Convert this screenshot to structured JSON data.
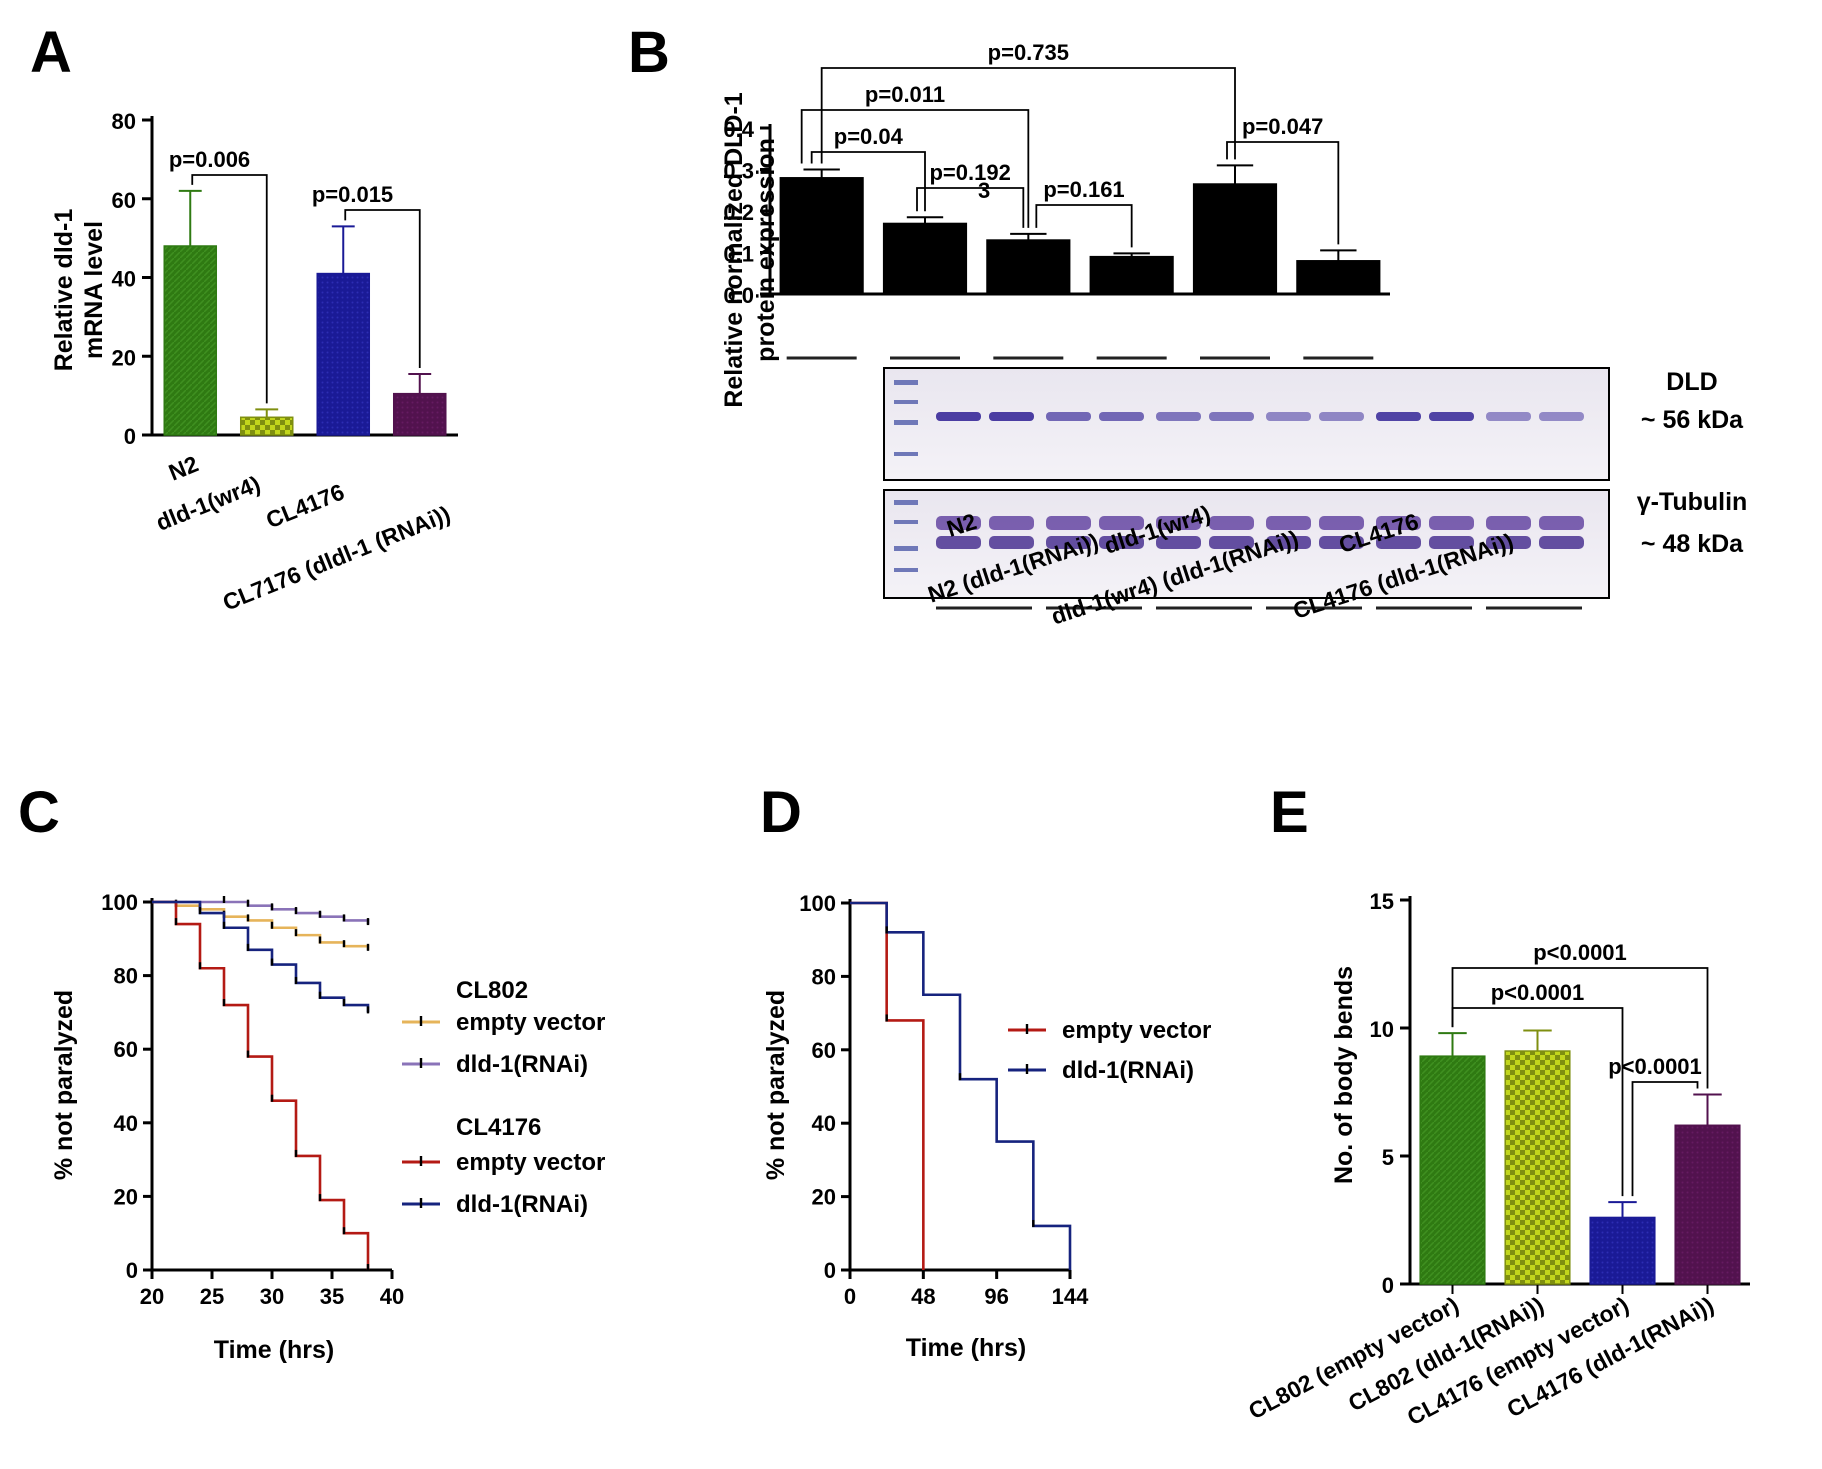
{
  "panels": {
    "A": "A",
    "B": "B",
    "C": "C",
    "D": "D",
    "E": "E"
  },
  "colors": {
    "green": "#2f7a12",
    "yellow_check": "#c2d61c",
    "blue": "#1a1a96",
    "purple": "#52124e",
    "black": "#000000",
    "tan": "#e6b45a",
    "lavender": "#8a73b8",
    "red": "#b41a14",
    "navy": "#16237e"
  },
  "chart_data": [
    {
      "panel": "A",
      "type": "bar",
      "ylabel_lines": [
        "Relative dld-1",
        "mRNA level"
      ],
      "ylim": [
        0,
        80
      ],
      "yticks": [
        "0",
        "20",
        "40",
        "60",
        "80"
      ],
      "categories": [
        "N2",
        "dld-1(wr4)",
        "CL4176",
        "CL7176 (dldl-1 (RNAi))"
      ],
      "values": [
        48,
        4.5,
        41,
        10.5
      ],
      "errors": [
        14,
        2,
        12,
        5
      ],
      "fills": [
        "green",
        "yellow_check",
        "blue",
        "purple"
      ],
      "significance": [
        {
          "from": 0,
          "to": 1,
          "p": "p=0.006"
        },
        {
          "from": 2,
          "to": 3,
          "p": "p=0.015"
        }
      ]
    },
    {
      "panel": "B",
      "type": "bar",
      "ylabel_lines": [
        "Relative normalized DLD-1",
        "protein expression"
      ],
      "ylim": [
        0,
        0.4
      ],
      "yticks": [
        "0.0",
        "0.1",
        "0.2",
        "0.3",
        "0.4"
      ],
      "categories": [
        "N2",
        "N2 (dld-1(RNAi))",
        "dld-1(wr4)",
        "dld-1(wr4) (dld-1(RNAi))",
        "CL4176",
        "CL4176 (dld-1(RNAi))"
      ],
      "values": [
        0.28,
        0.17,
        0.13,
        0.09,
        0.265,
        0.08
      ],
      "errors": [
        0.02,
        0.015,
        0.015,
        0.008,
        0.045,
        0.025
      ],
      "fills": [
        "black",
        "black",
        "black",
        "black",
        "black",
        "black"
      ],
      "bar_annotation": "3",
      "significance": [
        {
          "from": 0,
          "to": 4,
          "p": "p=0.735"
        },
        {
          "from": 0,
          "to": 2,
          "p": "p=0.011"
        },
        {
          "from": 0,
          "to": 1,
          "p": "p=0.04"
        },
        {
          "from": 1,
          "to": 2,
          "p": "p=0.192"
        },
        {
          "from": 2,
          "to": 3,
          "p": "p=0.161"
        },
        {
          "from": 4,
          "to": 5,
          "p": "p=0.047"
        }
      ],
      "blots": [
        {
          "label": "DLD",
          "size": "~ 56 kDa"
        },
        {
          "label": "γ-Tubulin",
          "size": "~ 48 kDa"
        }
      ]
    },
    {
      "panel": "C",
      "type": "line",
      "xlabel": "Time (hrs)",
      "ylabel": "% not paralyzed",
      "xlim": [
        20,
        40
      ],
      "ylim": [
        0,
        100
      ],
      "xticks": [
        20,
        25,
        30,
        35,
        40
      ],
      "yticks": [
        0,
        20,
        40,
        60,
        80,
        100
      ],
      "legend_groups": [
        {
          "title": "CL802",
          "entries": [
            0,
            1
          ]
        },
        {
          "title": "CL4176",
          "entries": [
            2,
            3
          ]
        }
      ],
      "series": [
        {
          "name": "empty vector",
          "color": "tan",
          "x": [
            20,
            22,
            24,
            26,
            28,
            30,
            32,
            34,
            36,
            38
          ],
          "y": [
            100,
            99,
            98,
            96,
            95,
            93,
            91,
            89,
            88,
            87
          ]
        },
        {
          "name": "dld-1(RNAi)",
          "color": "lavender",
          "x": [
            20,
            26,
            28,
            30,
            32,
            34,
            36,
            38
          ],
          "y": [
            100,
            100,
            99,
            98,
            97,
            96,
            95,
            94
          ]
        },
        {
          "name": "empty vector",
          "color": "red",
          "x": [
            20,
            22,
            24,
            26,
            28,
            30,
            32,
            34,
            36,
            38
          ],
          "y": [
            100,
            94,
            82,
            72,
            58,
            46,
            31,
            19,
            10,
            0
          ]
        },
        {
          "name": "dld-1(RNAi)",
          "color": "navy",
          "x": [
            20,
            24,
            26,
            28,
            30,
            32,
            34,
            36,
            38
          ],
          "y": [
            100,
            97,
            93,
            87,
            83,
            78,
            74,
            72,
            70
          ]
        }
      ]
    },
    {
      "panel": "D",
      "type": "line",
      "xlabel": "Time (hrs)",
      "ylabel": "% not paralyzed",
      "xlim": [
        0,
        144
      ],
      "ylim": [
        0,
        100
      ],
      "xticks": [
        0,
        48,
        96,
        144
      ],
      "yticks": [
        0,
        20,
        40,
        60,
        80,
        100
      ],
      "series": [
        {
          "name": "empty vector",
          "color": "red",
          "x": [
            0,
            24,
            48
          ],
          "y": [
            100,
            68,
            0
          ]
        },
        {
          "name": "dld-1(RNAi)",
          "color": "navy",
          "x": [
            0,
            24,
            48,
            72,
            96,
            120,
            144
          ],
          "y": [
            100,
            92,
            75,
            52,
            35,
            12,
            0
          ]
        }
      ]
    },
    {
      "panel": "E",
      "type": "bar",
      "ylabel": "No. of body bends",
      "ylim": [
        0,
        15
      ],
      "yticks": [
        "0",
        "5",
        "10",
        "15"
      ],
      "categories": [
        "CL802 (empty vector)",
        "CL802 (dld-1(RNAi))",
        "CL4176 (empty vector)",
        "CL4176 (dld-1(RNAi))"
      ],
      "values": [
        8.9,
        9.1,
        2.6,
        6.2
      ],
      "errors": [
        0.9,
        0.8,
        0.6,
        1.2
      ],
      "fills": [
        "green",
        "yellow_check",
        "blue",
        "purple"
      ],
      "significance": [
        {
          "from": 0,
          "to": 3,
          "p": "p<0.0001"
        },
        {
          "from": 0,
          "to": 2,
          "p": "p<0.0001"
        },
        {
          "from": 2,
          "to": 3,
          "p": "p<0.0001"
        }
      ]
    }
  ]
}
